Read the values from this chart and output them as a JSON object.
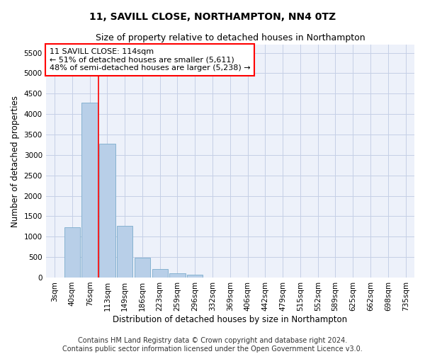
{
  "title": "11, SAVILL CLOSE, NORTHAMPTON, NN4 0TZ",
  "subtitle": "Size of property relative to detached houses in Northampton",
  "xlabel": "Distribution of detached houses by size in Northampton",
  "ylabel": "Number of detached properties",
  "categories": [
    "3sqm",
    "40sqm",
    "76sqm",
    "113sqm",
    "149sqm",
    "186sqm",
    "223sqm",
    "259sqm",
    "296sqm",
    "332sqm",
    "369sqm",
    "406sqm",
    "442sqm",
    "479sqm",
    "515sqm",
    "552sqm",
    "589sqm",
    "625sqm",
    "662sqm",
    "698sqm",
    "735sqm"
  ],
  "values": [
    0,
    1230,
    4280,
    3280,
    1270,
    480,
    200,
    100,
    60,
    0,
    0,
    0,
    0,
    0,
    0,
    0,
    0,
    0,
    0,
    0,
    0
  ],
  "bar_color": "#b8cfe8",
  "bar_edge_color": "#7aabcc",
  "vline_x_index": 2.5,
  "annotation_text_line1": "11 SAVILL CLOSE: 114sqm",
  "annotation_text_line2": "← 51% of detached houses are smaller (5,611)",
  "annotation_text_line3": "48% of semi-detached houses are larger (5,238) →",
  "ylim": [
    0,
    5700
  ],
  "yticks": [
    0,
    500,
    1000,
    1500,
    2000,
    2500,
    3000,
    3500,
    4000,
    4500,
    5000,
    5500
  ],
  "footer_line1": "Contains HM Land Registry data © Crown copyright and database right 2024.",
  "footer_line2": "Contains public sector information licensed under the Open Government Licence v3.0.",
  "bg_color": "#edf1fa",
  "grid_color": "#c5cfe6",
  "title_fontsize": 10,
  "subtitle_fontsize": 9,
  "axis_label_fontsize": 8.5,
  "tick_fontsize": 7.5,
  "annotation_fontsize": 8,
  "footer_fontsize": 7
}
